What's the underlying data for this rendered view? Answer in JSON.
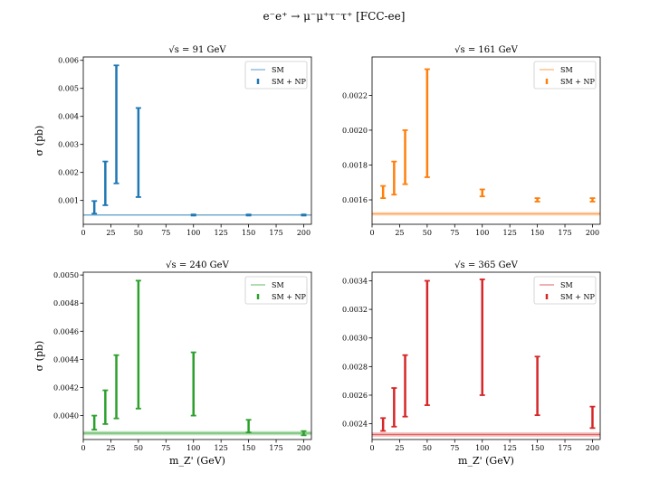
{
  "title": "e⁻e⁺ → μ⁻μ⁺τ⁻τ⁺ [FCC-ee]",
  "chart_data": [
    {
      "type": "errorbar",
      "title": "√s = 91 GeV",
      "xlabel": "",
      "ylabel": "σ (pb)",
      "color": "#1f77b4",
      "xlim": [
        0,
        207
      ],
      "ylim": [
        0.00015,
        0.00612
      ],
      "xticks": [
        0,
        25,
        50,
        75,
        100,
        125,
        150,
        175,
        200
      ],
      "yticks": [
        0.001,
        0.002,
        0.003,
        0.004,
        0.005,
        0.006
      ],
      "ytick_labels": [
        "0.001",
        "0.002",
        "0.003",
        "0.004",
        "0.005",
        "0.006"
      ],
      "sm": {
        "name": "SM",
        "value": 0.00048,
        "band": [
          0.00046,
          0.0005
        ]
      },
      "series": [
        {
          "name": "SM + NP",
          "x": [
            10,
            20,
            30,
            50,
            100,
            150,
            200
          ],
          "low": [
            0.00053,
            0.00083,
            0.00161,
            0.00112,
            0.00046,
            0.00046,
            0.00046
          ],
          "high": [
            0.00098,
            0.00239,
            0.00582,
            0.0043,
            0.0005,
            0.0005,
            0.0005
          ]
        }
      ],
      "legend_loc": "upper right"
    },
    {
      "type": "errorbar",
      "title": "√s = 161 GeV",
      "xlabel": "",
      "ylabel": "",
      "color": "#ff7f0e",
      "xlim": [
        0,
        207
      ],
      "ylim": [
        0.00146,
        0.00242
      ],
      "xticks": [
        0,
        25,
        50,
        75,
        100,
        125,
        150,
        175,
        200
      ],
      "yticks": [
        0.0016,
        0.0018,
        0.002,
        0.0022
      ],
      "ytick_labels": [
        "0.0016",
        "0.0018",
        "0.0020",
        "0.0022"
      ],
      "sm": {
        "name": "SM",
        "value": 0.00152,
        "band": [
          0.00151,
          0.00153
        ]
      },
      "series": [
        {
          "name": "SM + NP",
          "x": [
            10,
            20,
            30,
            50,
            100,
            150,
            200
          ],
          "low": [
            0.00161,
            0.00163,
            0.00169,
            0.00173,
            0.00162,
            0.00159,
            0.00159
          ],
          "high": [
            0.00168,
            0.00182,
            0.002,
            0.00235,
            0.00166,
            0.00161,
            0.00161
          ]
        }
      ],
      "legend_loc": "upper right"
    },
    {
      "type": "errorbar",
      "title": "√s = 240 GeV",
      "xlabel": "m_Z' (GeV)",
      "ylabel": "σ (pb)",
      "color": "#2ca02c",
      "xlim": [
        0,
        207
      ],
      "ylim": [
        0.00383,
        0.00502
      ],
      "xticks": [
        0,
        25,
        50,
        75,
        100,
        125,
        150,
        175,
        200
      ],
      "yticks": [
        0.004,
        0.0042,
        0.0044,
        0.0046,
        0.0048,
        0.005
      ],
      "ytick_labels": [
        "0.0040",
        "0.0042",
        "0.0044",
        "0.0046",
        "0.0048",
        "0.0050"
      ],
      "sm": {
        "name": "SM",
        "value": 0.003875,
        "band": [
          0.00386,
          0.00389
        ]
      },
      "series": [
        {
          "name": "SM + NP",
          "x": [
            10,
            20,
            30,
            50,
            100,
            150,
            200
          ],
          "low": [
            0.0039,
            0.00394,
            0.00398,
            0.00405,
            0.004,
            0.00388,
            0.00386
          ],
          "high": [
            0.004,
            0.00418,
            0.00443,
            0.00496,
            0.00445,
            0.00397,
            0.00389
          ]
        }
      ],
      "legend_loc": "upper right"
    },
    {
      "type": "errorbar",
      "title": "√s = 365 GeV",
      "xlabel": "m_Z' (GeV)",
      "ylabel": "",
      "color": "#d62728",
      "xlim": [
        0,
        207
      ],
      "ylim": [
        0.00229,
        0.00346
      ],
      "xticks": [
        0,
        25,
        50,
        75,
        100,
        125,
        150,
        175,
        200
      ],
      "yticks": [
        0.0024,
        0.0026,
        0.0028,
        0.003,
        0.0032,
        0.0034
      ],
      "ytick_labels": [
        "0.0024",
        "0.0026",
        "0.0028",
        "0.0030",
        "0.0032",
        "0.0034"
      ],
      "sm": {
        "name": "SM",
        "value": 0.002325,
        "band": [
          0.00231,
          0.00234
        ]
      },
      "series": [
        {
          "name": "SM + NP",
          "x": [
            10,
            20,
            30,
            50,
            100,
            150,
            200
          ],
          "low": [
            0.00235,
            0.00238,
            0.00245,
            0.00253,
            0.0026,
            0.00246,
            0.00237
          ],
          "high": [
            0.00244,
            0.00265,
            0.00288,
            0.0034,
            0.00341,
            0.00287,
            0.00252
          ]
        }
      ],
      "legend_loc": "upper right"
    }
  ]
}
